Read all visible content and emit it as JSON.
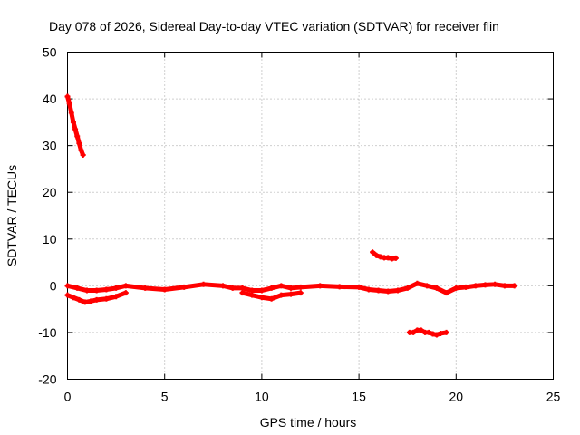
{
  "chart_data": {
    "type": "scatter",
    "title": "Day 078 of 2026, Sidereal Day-to-day VTEC variation (SDTVAR) for receiver flin",
    "xlabel": "GPS time / hours",
    "ylabel": "SDTVAR / TECUs",
    "xlim": [
      0,
      25
    ],
    "ylim": [
      -20,
      50
    ],
    "xticks": [
      0,
      5,
      10,
      15,
      20,
      25
    ],
    "yticks": [
      -20,
      -10,
      0,
      10,
      20,
      30,
      40,
      50
    ],
    "xtick_labels": [
      "0",
      "5",
      "10",
      "15",
      "20",
      "25"
    ],
    "ytick_labels": [
      "-20",
      "-10",
      "0",
      "10",
      "20",
      "30",
      "40",
      "50"
    ],
    "grid": true,
    "marker_color": "#ff0000",
    "series": [
      {
        "name": "early-high-decline",
        "x": [
          0.0,
          0.1,
          0.2,
          0.3,
          0.4,
          0.5,
          0.6,
          0.7,
          0.8
        ],
        "y": [
          40.5,
          39.0,
          37.0,
          35.0,
          33.5,
          32.0,
          30.5,
          29.0,
          28.0
        ]
      },
      {
        "name": "main-track",
        "x": [
          0.0,
          0.5,
          1.0,
          1.5,
          2.0,
          2.5,
          3.0,
          4.0,
          5.0,
          6.0,
          7.0,
          8.0,
          8.5,
          9.0,
          9.5,
          10.0,
          10.5,
          11.0,
          11.5,
          12.0,
          13.0,
          14.0,
          15.0,
          15.5,
          16.0,
          16.5,
          17.0,
          17.5,
          18.0,
          18.5,
          19.0,
          19.5,
          20.0,
          20.5,
          21.0,
          21.5,
          22.0,
          22.5,
          23.0
        ],
        "y": [
          0.0,
          -0.5,
          -1.0,
          -1.0,
          -0.8,
          -0.5,
          0.0,
          -0.5,
          -0.8,
          -0.3,
          0.3,
          0.0,
          -0.5,
          -0.5,
          -1.0,
          -1.0,
          -0.5,
          0.0,
          -0.5,
          -0.3,
          0.0,
          -0.2,
          -0.3,
          -0.8,
          -1.0,
          -1.2,
          -1.0,
          -0.5,
          0.5,
          0.0,
          -0.5,
          -1.5,
          -0.5,
          -0.3,
          0.0,
          0.2,
          0.3,
          0.0,
          0.0
        ]
      },
      {
        "name": "early-lower-branch",
        "x": [
          0.0,
          0.3,
          0.6,
          0.9,
          1.2,
          1.5,
          2.0,
          2.5,
          3.0
        ],
        "y": [
          -2.0,
          -2.5,
          -3.0,
          -3.5,
          -3.3,
          -3.0,
          -2.8,
          -2.3,
          -1.5
        ]
      },
      {
        "name": "mid-lower-branch",
        "x": [
          9.0,
          9.5,
          10.0,
          10.5,
          11.0,
          11.5,
          12.0
        ],
        "y": [
          -1.5,
          -2.0,
          -2.5,
          -2.8,
          -2.0,
          -1.8,
          -1.5
        ]
      },
      {
        "name": "short-arc-positive",
        "x": [
          15.7,
          15.9,
          16.1,
          16.3,
          16.5,
          16.7,
          16.9
        ],
        "y": [
          7.2,
          6.5,
          6.2,
          6.0,
          6.0,
          5.8,
          5.9
        ]
      },
      {
        "name": "short-arc-negative",
        "x": [
          17.6,
          17.8,
          18.0,
          18.2,
          18.4,
          18.6,
          18.8,
          19.0,
          19.2,
          19.5
        ],
        "y": [
          -10.0,
          -10.0,
          -9.5,
          -9.5,
          -10.0,
          -10.0,
          -10.3,
          -10.5,
          -10.2,
          -10.0
        ]
      }
    ]
  }
}
